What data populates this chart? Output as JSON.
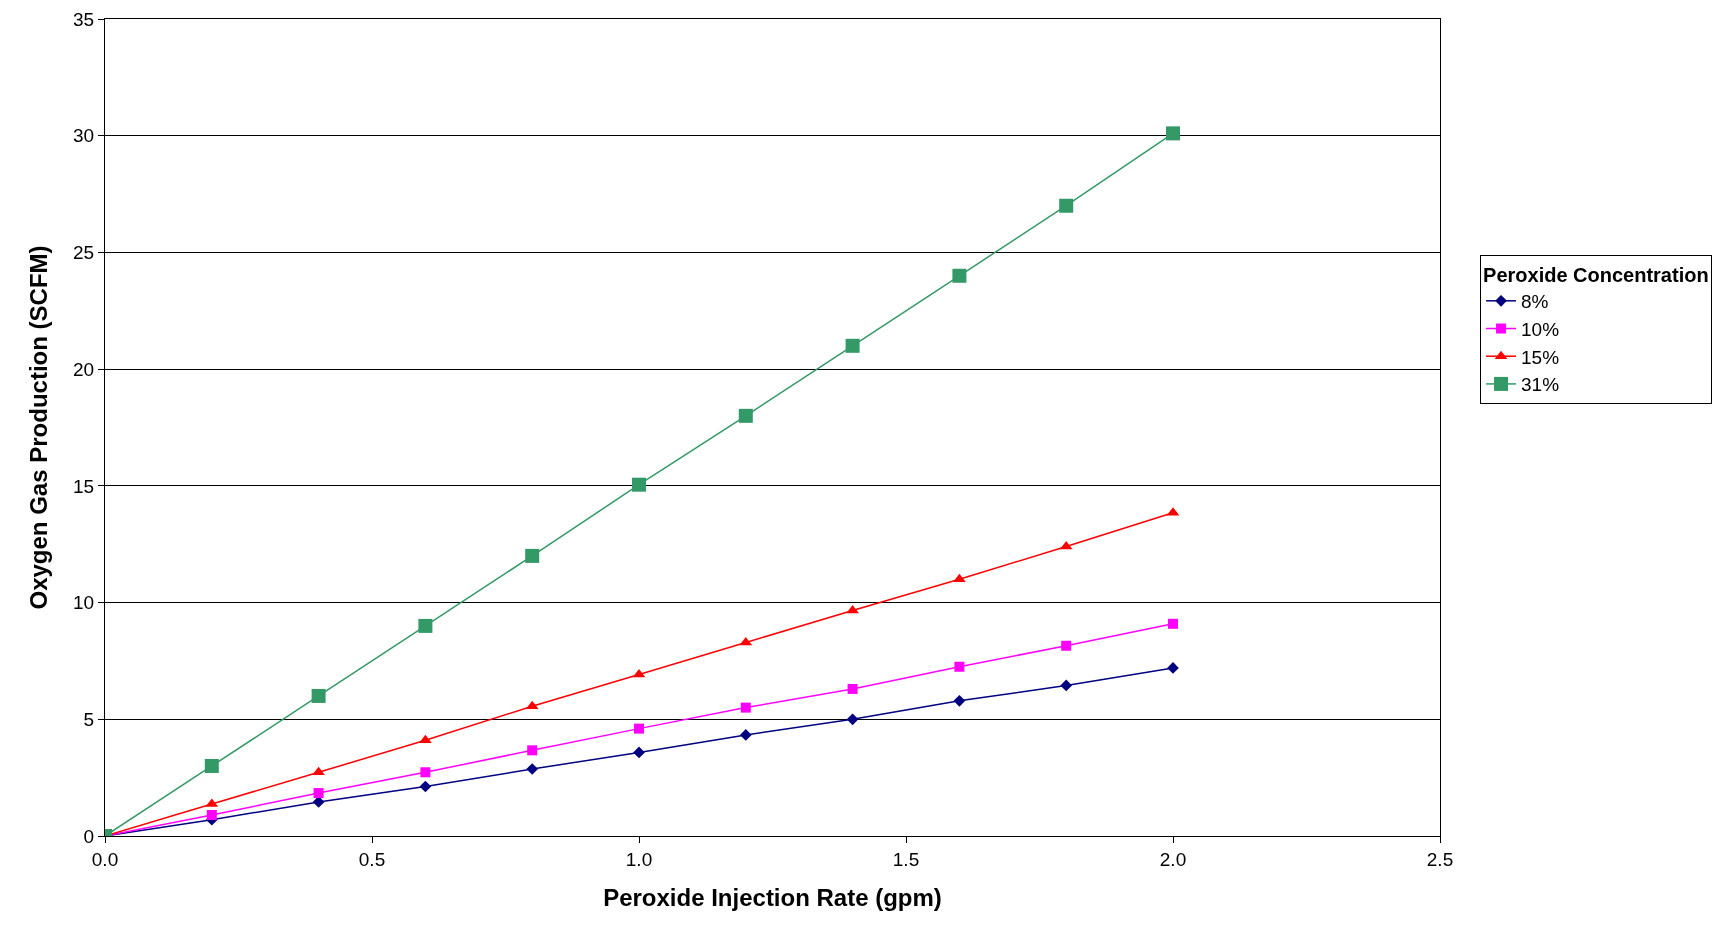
{
  "chart_data": {
    "type": "line",
    "xlabel": "Peroxide Injection Rate (gpm)",
    "ylabel": "Oxygen Gas Production (SCFM)",
    "legend_title": "Peroxide Concentration",
    "legend": "right",
    "grid": "y",
    "x": [
      0,
      0.2,
      0.4,
      0.6,
      0.8,
      1.0,
      1.2,
      1.4,
      1.6,
      1.8,
      2.0
    ],
    "series": [
      {
        "name": "8%",
        "color": "#000080",
        "marker": "diamond",
        "values": [
          0,
          0.7,
          1.46,
          2.12,
          2.87,
          3.58,
          4.33,
          5.0,
          5.79,
          6.45,
          7.2
        ]
      },
      {
        "name": "10%",
        "color": "#ff00ff",
        "marker": "square",
        "values": [
          0,
          0.9,
          1.84,
          2.73,
          3.67,
          4.6,
          5.5,
          6.3,
          7.25,
          8.15,
          9.09
        ]
      },
      {
        "name": "15%",
        "color": "#ff0000",
        "marker": "triangle",
        "values": [
          0,
          1.37,
          2.73,
          4.1,
          5.56,
          6.92,
          8.29,
          9.66,
          11.0,
          12.4,
          13.85
        ]
      },
      {
        "name": "31%",
        "color": "#339966",
        "marker": "square",
        "values": [
          0,
          3.0,
          6.0,
          9.0,
          12.0,
          15.05,
          18.0,
          21.0,
          24.0,
          27.0,
          30.1
        ]
      }
    ],
    "xlim": [
      0,
      2.5
    ],
    "xticks": [
      {
        "value": 0,
        "label": "0.0"
      },
      0.5,
      {
        "value": 1,
        "label": "1.0"
      },
      1.5,
      {
        "value": 2,
        "label": "2.0"
      },
      2.5
    ],
    "ylim": [
      0,
      35
    ],
    "yticks": [
      0,
      5,
      10,
      15,
      20,
      25,
      30,
      35
    ]
  }
}
